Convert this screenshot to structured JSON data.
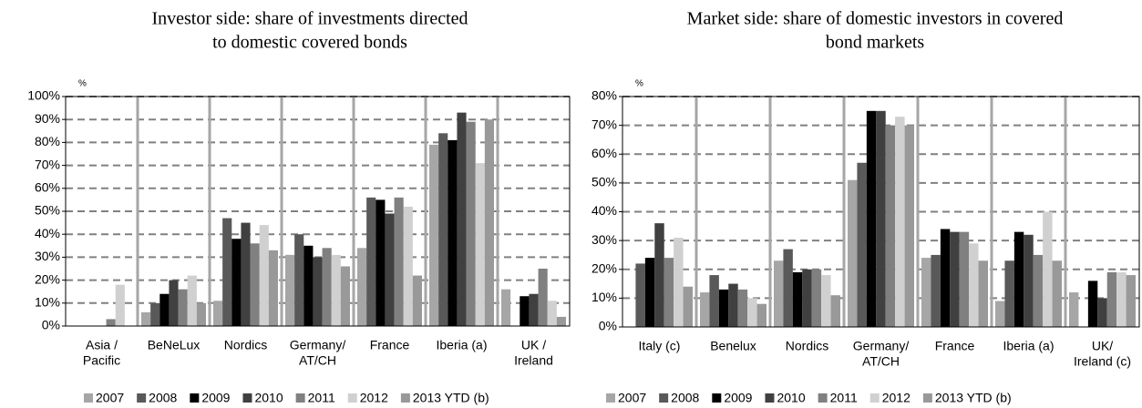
{
  "chart_data": [
    {
      "type": "bar",
      "title": [
        "Investor side: share of investments directed",
        "to domestic covered bonds"
      ],
      "y_unit": "%",
      "categories": [
        [
          "Asia /",
          "Pacific"
        ],
        [
          "BeNeLux"
        ],
        [
          "Nordics"
        ],
        [
          "Germany/",
          "AT/CH"
        ],
        [
          "France"
        ],
        [
          "Iberia (a)"
        ],
        [
          "UK /",
          "Ireland"
        ]
      ],
      "series": [
        {
          "name": "2007",
          "color": "#a6a6a6",
          "values": [
            0,
            6,
            11,
            31,
            34,
            79,
            16
          ]
        },
        {
          "name": "2008",
          "color": "#595959",
          "values": [
            0,
            10,
            47,
            40,
            56,
            84,
            0
          ]
        },
        {
          "name": "2009",
          "color": "#000000",
          "values": [
            0,
            14,
            38,
            35,
            55,
            81,
            13
          ]
        },
        {
          "name": "2010",
          "color": "#404040",
          "values": [
            0,
            20,
            45,
            30,
            49,
            93,
            14
          ]
        },
        {
          "name": "2011",
          "color": "#808080",
          "values": [
            3,
            16,
            36,
            34,
            56,
            89,
            25
          ]
        },
        {
          "name": "2012",
          "color": "#d0d0d0",
          "values": [
            18,
            22,
            44,
            31,
            52,
            71,
            11
          ]
        },
        {
          "name": "2013 YTD (b)",
          "color": "#999999",
          "values": [
            0,
            10,
            33,
            26,
            22,
            90,
            4
          ]
        }
      ],
      "ylim": [
        0,
        100
      ],
      "yticks": [
        {
          "value": 0,
          "label": "0%"
        },
        {
          "value": 10,
          "label": "10%"
        },
        {
          "value": 20,
          "label": "20%"
        },
        {
          "value": 30,
          "label": "30%"
        },
        {
          "value": 40,
          "label": "40%"
        },
        {
          "value": 50,
          "label": "50%"
        },
        {
          "value": 60,
          "label": "60%"
        },
        {
          "value": 70,
          "label": "70%"
        },
        {
          "value": 80,
          "label": "80%"
        },
        {
          "value": 90,
          "label": "90%"
        },
        {
          "value": 100,
          "label": "100%"
        }
      ],
      "grid": true,
      "legend": "bottom"
    },
    {
      "type": "bar",
      "title": [
        "Market side: share of domestic investors in covered",
        "bond markets"
      ],
      "y_unit": "%",
      "categories": [
        [
          "Italy (c)"
        ],
        [
          "Benelux"
        ],
        [
          "Nordics"
        ],
        [
          "Germany/",
          "AT/CH"
        ],
        [
          "France"
        ],
        [
          "Iberia (a)"
        ],
        [
          "UK/",
          "Ireland (c)"
        ]
      ],
      "series": [
        {
          "name": "2007",
          "color": "#a6a6a6",
          "values": [
            0,
            12,
            23,
            51,
            24,
            9,
            12
          ]
        },
        {
          "name": "2008",
          "color": "#595959",
          "values": [
            22,
            18,
            27,
            57,
            25,
            23,
            0
          ]
        },
        {
          "name": "2009",
          "color": "#000000",
          "values": [
            24,
            13,
            19,
            75,
            34,
            33,
            16
          ]
        },
        {
          "name": "2010",
          "color": "#404040",
          "values": [
            36,
            15,
            20,
            75,
            33,
            32,
            10
          ]
        },
        {
          "name": "2011",
          "color": "#808080",
          "values": [
            24,
            13,
            20,
            70,
            33,
            25,
            19
          ]
        },
        {
          "name": "2012",
          "color": "#d0d0d0",
          "values": [
            31,
            10,
            18,
            73,
            29,
            40,
            19
          ]
        },
        {
          "name": "2013 YTD (b)",
          "color": "#999999",
          "values": [
            14,
            8,
            11,
            70,
            23,
            23,
            18
          ]
        }
      ],
      "ylim": [
        0,
        80
      ],
      "yticks": [
        {
          "value": 0,
          "label": "0%"
        },
        {
          "value": 10,
          "label": "10%"
        },
        {
          "value": 20,
          "label": "20%"
        },
        {
          "value": 30,
          "label": "30%"
        },
        {
          "value": 40,
          "label": "40%"
        },
        {
          "value": 50,
          "label": "50%"
        },
        {
          "value": 60,
          "label": "60%"
        },
        {
          "value": 70,
          "label": "70%"
        },
        {
          "value": 80,
          "label": "80%"
        }
      ],
      "grid": true,
      "legend": "bottom"
    }
  ]
}
